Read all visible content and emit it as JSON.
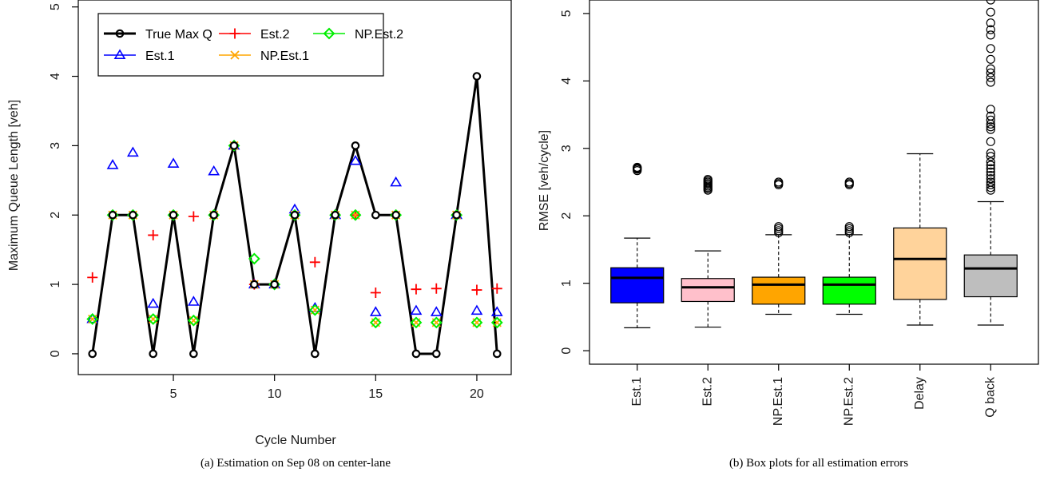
{
  "chart_data": [
    {
      "type": "line",
      "caption": "(a) Estimation on Sep 08 on center-lane",
      "xlabel": "Cycle Number",
      "ylabel": "Maximum Queue Length [veh]",
      "xlim": [
        0.3,
        21.7
      ],
      "ylim": [
        -0.3,
        5.1
      ],
      "xticks": [
        5,
        10,
        15,
        20
      ],
      "yticks": [
        0,
        1,
        2,
        3,
        4,
        5
      ],
      "legend_position": "top-left, three columns",
      "x": [
        1,
        2,
        3,
        4,
        5,
        6,
        7,
        8,
        9,
        10,
        11,
        12,
        13,
        14,
        15,
        16,
        17,
        18,
        19,
        20,
        21
      ],
      "series": [
        {
          "name": "True Max Q",
          "color": "#000000",
          "marker": "circle",
          "line": true,
          "values": [
            0,
            2,
            2,
            0,
            2,
            0,
            2,
            3,
            1,
            1,
            2,
            0,
            2,
            3,
            2,
            2,
            0,
            0,
            2,
            4,
            0
          ]
        },
        {
          "name": "Est.1",
          "color": "#0000ff",
          "marker": "triangle",
          "values": [
            0.5,
            2.72,
            2.9,
            0.72,
            2.74,
            0.75,
            2.63,
            3.0,
            1.0,
            1.0,
            2.08,
            0.66,
            2.0,
            2.78,
            0.6,
            2.47,
            0.62,
            0.6,
            2.0,
            0.62,
            0.6
          ]
        },
        {
          "name": "Est.2",
          "color": "#ff0000",
          "marker": "plus",
          "values": [
            1.1,
            2.0,
            2.0,
            1.71,
            2.0,
            1.98,
            2.0,
            3.0,
            1.0,
            1.0,
            2.0,
            1.32,
            2.0,
            2.0,
            0.88,
            2.0,
            0.93,
            0.94,
            2.0,
            0.92,
            0.94
          ]
        },
        {
          "name": "NP.Est.1",
          "color": "#ffa500",
          "marker": "cross",
          "values": [
            0.5,
            2.0,
            2.0,
            0.5,
            2.0,
            0.48,
            2.0,
            3.0,
            1.0,
            1.0,
            2.0,
            0.63,
            2.0,
            2.0,
            0.45,
            2.0,
            0.45,
            0.45,
            2.0,
            0.45,
            0.45
          ]
        },
        {
          "name": "NP.Est.2",
          "color": "#00ee00",
          "marker": "diamond",
          "values": [
            0.5,
            2.0,
            2.0,
            0.5,
            2.0,
            0.48,
            2.0,
            3.0,
            1.37,
            1.0,
            2.0,
            0.63,
            2.0,
            2.0,
            0.45,
            2.0,
            0.45,
            0.45,
            2.0,
            0.45,
            0.45
          ]
        }
      ]
    },
    {
      "type": "box",
      "caption": "(b) Box plots for all estimation errors",
      "ylabel": "RMSE [veh/cycle]",
      "ylim": [
        -0.2,
        5.2
      ],
      "yticks": [
        0,
        1,
        2,
        3,
        4,
        5
      ],
      "categories": [
        "Est.1",
        "Est.2",
        "NP.Est.1",
        "NP.Est.2",
        "Delay",
        "Q back"
      ],
      "boxes": [
        {
          "name": "Est.1",
          "color": "#0000ff",
          "whisker_low": 0.34,
          "q1": 0.71,
          "median": 1.08,
          "q3": 1.23,
          "whisker_high": 1.67,
          "outliers": [
            2.67,
            2.69,
            2.7,
            2.71,
            2.72
          ]
        },
        {
          "name": "Est.2",
          "color": "#ffc0cb",
          "whisker_low": 0.35,
          "q1": 0.73,
          "median": 0.94,
          "q3": 1.07,
          "whisker_high": 1.48,
          "outliers": [
            2.38,
            2.4,
            2.42,
            2.44,
            2.46,
            2.48,
            2.5,
            2.52,
            2.54
          ]
        },
        {
          "name": "NP.Est.1",
          "color": "#ffa500",
          "whisker_low": 0.54,
          "q1": 0.69,
          "median": 0.98,
          "q3": 1.09,
          "whisker_high": 1.72,
          "outliers": [
            1.75,
            1.78,
            1.81,
            1.84,
            2.46,
            2.48,
            2.5
          ]
        },
        {
          "name": "NP.Est.2",
          "color": "#00ff00",
          "whisker_low": 0.54,
          "q1": 0.69,
          "median": 0.98,
          "q3": 1.09,
          "whisker_high": 1.72,
          "outliers": [
            1.75,
            1.78,
            1.81,
            1.84,
            2.46,
            2.48,
            2.5
          ]
        },
        {
          "name": "Delay",
          "color": "#ffd39b",
          "whisker_low": 0.38,
          "q1": 0.76,
          "median": 1.36,
          "q3": 1.82,
          "whisker_high": 2.92,
          "outliers": []
        },
        {
          "name": "Q back",
          "color": "#bebebe",
          "whisker_low": 0.38,
          "q1": 0.8,
          "median": 1.22,
          "q3": 1.42,
          "whisker_high": 2.21,
          "outliers": [
            2.38,
            2.42,
            2.46,
            2.5,
            2.55,
            2.6,
            2.65,
            2.7,
            2.75,
            2.8,
            2.88,
            2.93,
            3.1,
            3.28,
            3.32,
            3.36,
            3.42,
            3.48,
            3.58,
            3.98,
            4.05,
            4.12,
            4.18,
            4.32,
            4.48,
            4.68,
            4.76,
            4.86,
            5.02,
            5.2
          ]
        }
      ]
    }
  ]
}
